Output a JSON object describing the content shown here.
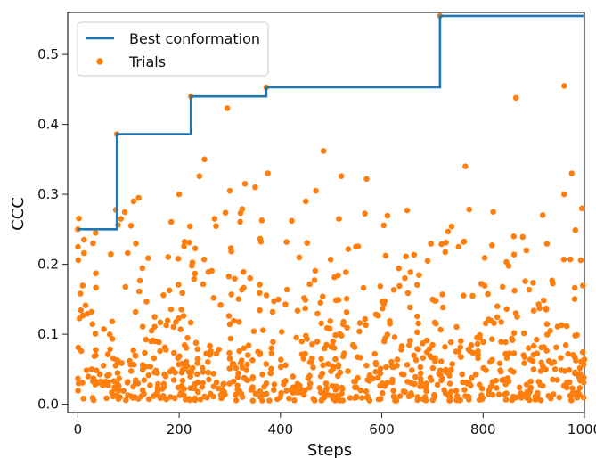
{
  "chart_data": {
    "type": "scatter",
    "title": "",
    "xlabel": "Steps",
    "ylabel": "CCC",
    "xlim": [
      -20,
      1000
    ],
    "ylim": [
      -0.012,
      0.56
    ],
    "xticks": [
      0,
      200,
      400,
      600,
      800,
      1000
    ],
    "yticks": [
      0.0,
      0.1,
      0.2,
      0.3,
      0.4,
      0.5
    ],
    "ytick_labels": [
      "0.0",
      "0.1",
      "0.2",
      "0.3",
      "0.4",
      "0.5"
    ],
    "grid": false,
    "legend_position": "top-left",
    "colors": {
      "line": "#1f77b4",
      "points": "#ff7f0e"
    },
    "series": [
      {
        "name": "Best conformation",
        "type": "step",
        "x": [
          0,
          77,
          77,
          223,
          223,
          372,
          372,
          715,
          715,
          1000
        ],
        "y": [
          0.25,
          0.25,
          0.386,
          0.386,
          0.44,
          0.44,
          0.453,
          0.453,
          0.555,
          0.555
        ]
      },
      {
        "name": "Trials",
        "type": "scatter",
        "seed": 7,
        "count": 900,
        "highlights": [
          [
            0,
            0.25
          ],
          [
            30,
            0.23
          ],
          [
            35,
            0.245
          ],
          [
            75,
            0.278
          ],
          [
            77,
            0.386
          ],
          [
            85,
            0.265
          ],
          [
            110,
            0.29
          ],
          [
            120,
            0.295
          ],
          [
            200,
            0.3
          ],
          [
            223,
            0.44
          ],
          [
            240,
            0.326
          ],
          [
            250,
            0.35
          ],
          [
            270,
            0.265
          ],
          [
            295,
            0.423
          ],
          [
            300,
            0.305
          ],
          [
            330,
            0.315
          ],
          [
            350,
            0.31
          ],
          [
            372,
            0.453
          ],
          [
            375,
            0.33
          ],
          [
            450,
            0.29
          ],
          [
            470,
            0.305
          ],
          [
            485,
            0.362
          ],
          [
            520,
            0.326
          ],
          [
            570,
            0.322
          ],
          [
            650,
            0.277
          ],
          [
            715,
            0.555
          ],
          [
            765,
            0.34
          ],
          [
            820,
            0.275
          ],
          [
            865,
            0.438
          ],
          [
            960,
            0.455
          ],
          [
            960,
            0.3
          ],
          [
            975,
            0.33
          ],
          [
            995,
            0.28
          ]
        ]
      }
    ]
  }
}
